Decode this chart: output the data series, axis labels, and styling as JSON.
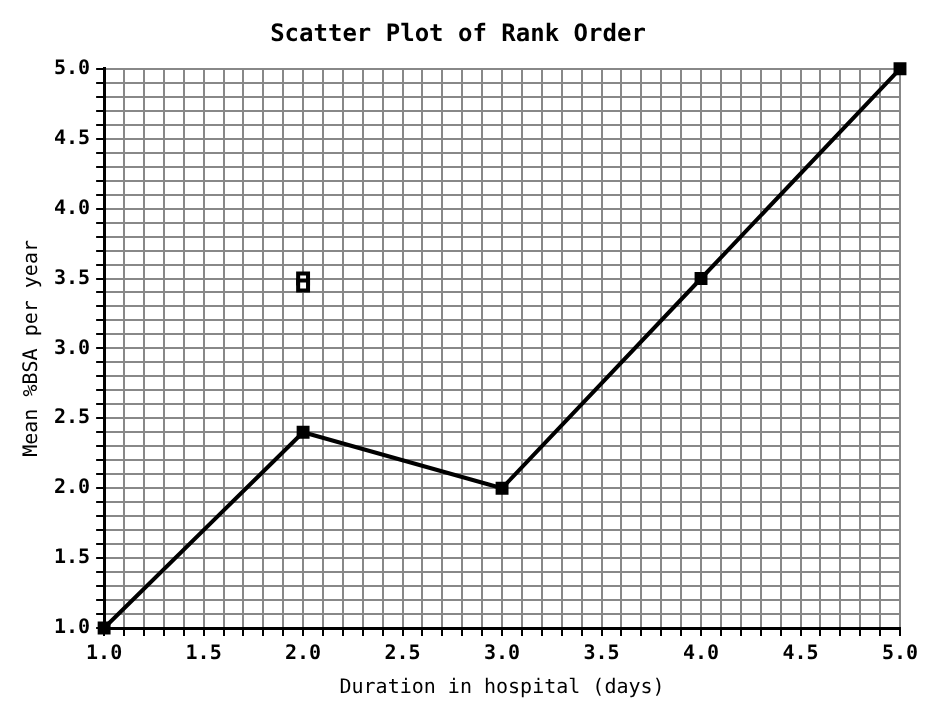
{
  "chart_data": {
    "type": "line",
    "title": "Scatter Plot of Rank Order",
    "xlabel": "Duration in hospital (days)",
    "ylabel": "Mean %BSA per year",
    "series": [
      {
        "type": "line",
        "color": "#000000",
        "marker": "square",
        "x": [
          1,
          2,
          3,
          4,
          5
        ],
        "values": [
          1,
          2.4,
          2,
          3.5,
          5
        ]
      },
      {
        "type": "scatter",
        "color": "#000000",
        "marker": "square",
        "x": [
          2,
          2
        ],
        "values": [
          3.5,
          3.45
        ]
      }
    ],
    "xlim": [
      1,
      5
    ],
    "ylim": [
      1,
      5
    ],
    "xticks": [
      {
        "value": 1,
        "label": "1.0"
      },
      {
        "value": 1.1,
        "label": null
      },
      {
        "value": 1.2,
        "label": null
      },
      {
        "value": 1.3,
        "label": null
      },
      {
        "value": 1.4,
        "label": null
      },
      {
        "value": 1.5,
        "label": "1.5"
      },
      {
        "value": 1.6,
        "label": null
      },
      {
        "value": 1.7,
        "label": null
      },
      {
        "value": 1.8,
        "label": null
      },
      {
        "value": 1.9,
        "label": null
      },
      {
        "value": 2,
        "label": "2.0"
      },
      {
        "value": 2.1,
        "label": null
      },
      {
        "value": 2.2,
        "label": null
      },
      {
        "value": 2.3,
        "label": null
      },
      {
        "value": 2.4,
        "label": null
      },
      {
        "value": 2.5,
        "label": "2.5"
      },
      {
        "value": 2.6,
        "label": null
      },
      {
        "value": 2.7,
        "label": null
      },
      {
        "value": 2.8,
        "label": null
      },
      {
        "value": 2.9,
        "label": null
      },
      {
        "value": 3,
        "label": "3.0"
      },
      {
        "value": 3.1,
        "label": null
      },
      {
        "value": 3.2,
        "label": null
      },
      {
        "value": 3.3,
        "label": null
      },
      {
        "value": 3.4,
        "label": null
      },
      {
        "value": 3.5,
        "label": "3.5"
      },
      {
        "value": 3.6,
        "label": null
      },
      {
        "value": 3.7,
        "label": null
      },
      {
        "value": 3.8,
        "label": null
      },
      {
        "value": 3.9,
        "label": null
      },
      {
        "value": 4,
        "label": "4.0"
      },
      {
        "value": 4.1,
        "label": null
      },
      {
        "value": 4.2,
        "label": null
      },
      {
        "value": 4.3,
        "label": null
      },
      {
        "value": 4.4,
        "label": null
      },
      {
        "value": 4.5,
        "label": "4.5"
      },
      {
        "value": 4.6,
        "label": null
      },
      {
        "value": 4.7,
        "label": null
      },
      {
        "value": 4.8,
        "label": null
      },
      {
        "value": 4.9,
        "label": null
      },
      {
        "value": 5,
        "label": "5.0"
      }
    ],
    "yticks": [
      {
        "value": 1,
        "label": "1.0"
      },
      {
        "value": 1.1,
        "label": null
      },
      {
        "value": 1.2,
        "label": null
      },
      {
        "value": 1.3,
        "label": null
      },
      {
        "value": 1.4,
        "label": null
      },
      {
        "value": 1.5,
        "label": "1.5"
      },
      {
        "value": 1.6,
        "label": null
      },
      {
        "value": 1.7,
        "label": null
      },
      {
        "value": 1.8,
        "label": null
      },
      {
        "value": 1.9,
        "label": null
      },
      {
        "value": 2,
        "label": "2.0"
      },
      {
        "value": 2.1,
        "label": null
      },
      {
        "value": 2.2,
        "label": null
      },
      {
        "value": 2.3,
        "label": null
      },
      {
        "value": 2.4,
        "label": null
      },
      {
        "value": 2.5,
        "label": "2.5"
      },
      {
        "value": 2.6,
        "label": null
      },
      {
        "value": 2.7,
        "label": null
      },
      {
        "value": 2.8,
        "label": null
      },
      {
        "value": 2.9,
        "label": null
      },
      {
        "value": 3,
        "label": "3.0"
      },
      {
        "value": 3.1,
        "label": null
      },
      {
        "value": 3.2,
        "label": null
      },
      {
        "value": 3.3,
        "label": null
      },
      {
        "value": 3.4,
        "label": null
      },
      {
        "value": 3.5,
        "label": "3.5"
      },
      {
        "value": 3.6,
        "label": null
      },
      {
        "value": 3.7,
        "label": null
      },
      {
        "value": 3.8,
        "label": null
      },
      {
        "value": 3.9,
        "label": null
      },
      {
        "value": 4,
        "label": "4.0"
      },
      {
        "value": 4.1,
        "label": null
      },
      {
        "value": 4.2,
        "label": null
      },
      {
        "value": 4.3,
        "label": null
      },
      {
        "value": 4.4,
        "label": null
      },
      {
        "value": 4.5,
        "label": "4.5"
      },
      {
        "value": 4.6,
        "label": null
      },
      {
        "value": 4.7,
        "label": null
      },
      {
        "value": 4.8,
        "label": null
      },
      {
        "value": 4.9,
        "label": null
      },
      {
        "value": 5,
        "label": "5.0"
      }
    ],
    "grid": true,
    "legend": false
  }
}
